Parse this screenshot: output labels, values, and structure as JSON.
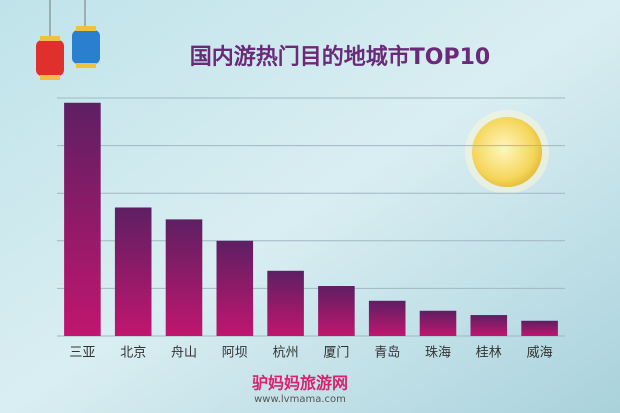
{
  "chart_data": {
    "type": "bar",
    "title": "国内游热门目的地城市TOP10",
    "categories": [
      "三亚",
      "北京",
      "舟山",
      "阿坝",
      "杭州",
      "厦门",
      "青岛",
      "珠海",
      "桂林",
      "威海"
    ],
    "values": [
      4.9,
      2.7,
      2.45,
      2.0,
      1.37,
      1.05,
      0.74,
      0.53,
      0.44,
      0.32
    ],
    "color": "#6a1f6e",
    "ylim": [
      0,
      5
    ],
    "yticks": [
      0,
      1,
      2,
      3,
      4,
      5
    ],
    "grid": true
  },
  "logo": {
    "name": "驴妈妈旅游网",
    "url": "www.lvmama.com"
  }
}
